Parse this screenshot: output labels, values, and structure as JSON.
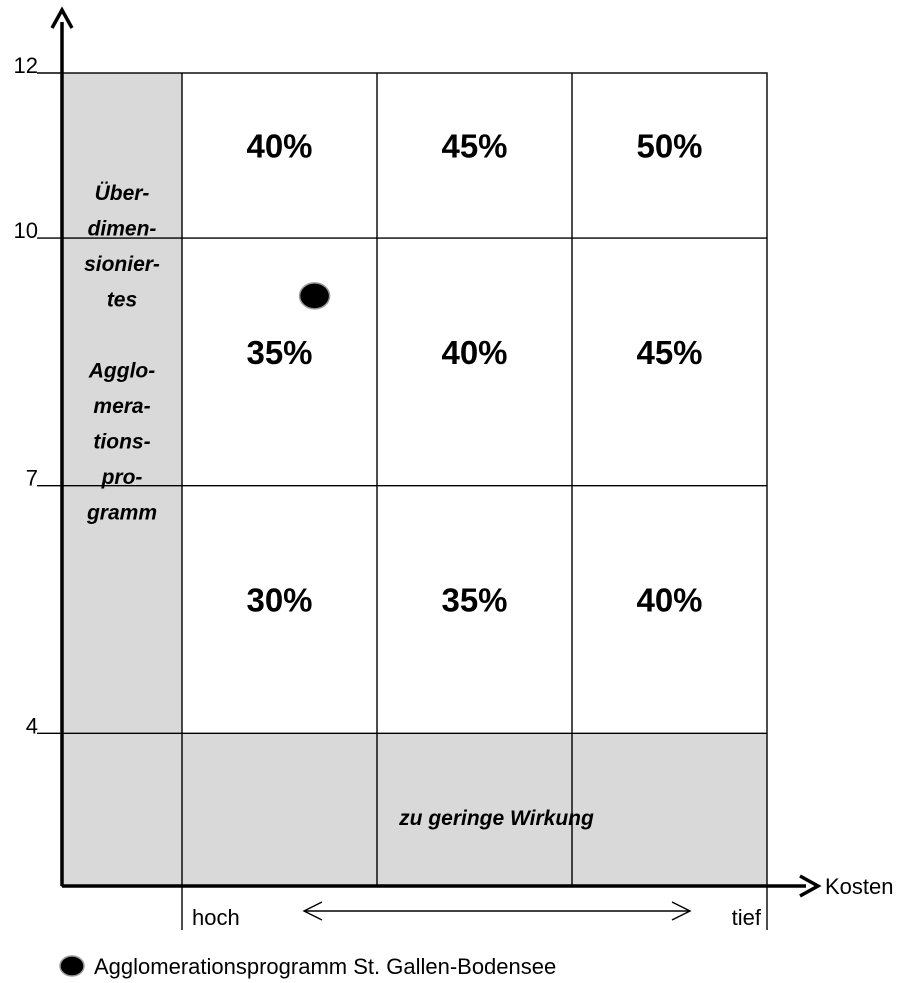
{
  "chart_data": {
    "type": "heatmap",
    "x_axis": {
      "label": "Kosten",
      "low_label": "hoch",
      "high_label": "tief",
      "columns": 3
    },
    "y_axis": {
      "ticks": [
        4,
        7,
        10,
        12
      ],
      "range": [
        2.15,
        12
      ]
    },
    "cells": [
      {
        "row_range": [
          10,
          12
        ],
        "col": 1,
        "label": "40%"
      },
      {
        "row_range": [
          10,
          12
        ],
        "col": 2,
        "label": "45%"
      },
      {
        "row_range": [
          10,
          12
        ],
        "col": 3,
        "label": "50%"
      },
      {
        "row_range": [
          7,
          10
        ],
        "col": 1,
        "label": "35%"
      },
      {
        "row_range": [
          7,
          10
        ],
        "col": 2,
        "label": "40%"
      },
      {
        "row_range": [
          7,
          10
        ],
        "col": 3,
        "label": "45%"
      },
      {
        "row_range": [
          4,
          7
        ],
        "col": 1,
        "label": "30%"
      },
      {
        "row_range": [
          4,
          7
        ],
        "col": 2,
        "label": "35%"
      },
      {
        "row_range": [
          4,
          7
        ],
        "col": 3,
        "label": "40%"
      }
    ],
    "zones": {
      "left_label_lines": [
        "Über-",
        "dimen-",
        "sionier-",
        "tes",
        "",
        "Agglo-",
        "mera-",
        "tions-",
        "pro-",
        "gramm"
      ],
      "bottom_label": "zu geringe Wirkung",
      "shade_color": "#d9d9d9"
    },
    "point": {
      "name": "Agglomerationsprogramm St. Gallen-Bodensee",
      "col_position": 0.68,
      "y": 9.3
    },
    "legend": {
      "label": "Agglomerationsprogramm St. Gallen-Bodensee",
      "placement": "bottom-left"
    }
  }
}
